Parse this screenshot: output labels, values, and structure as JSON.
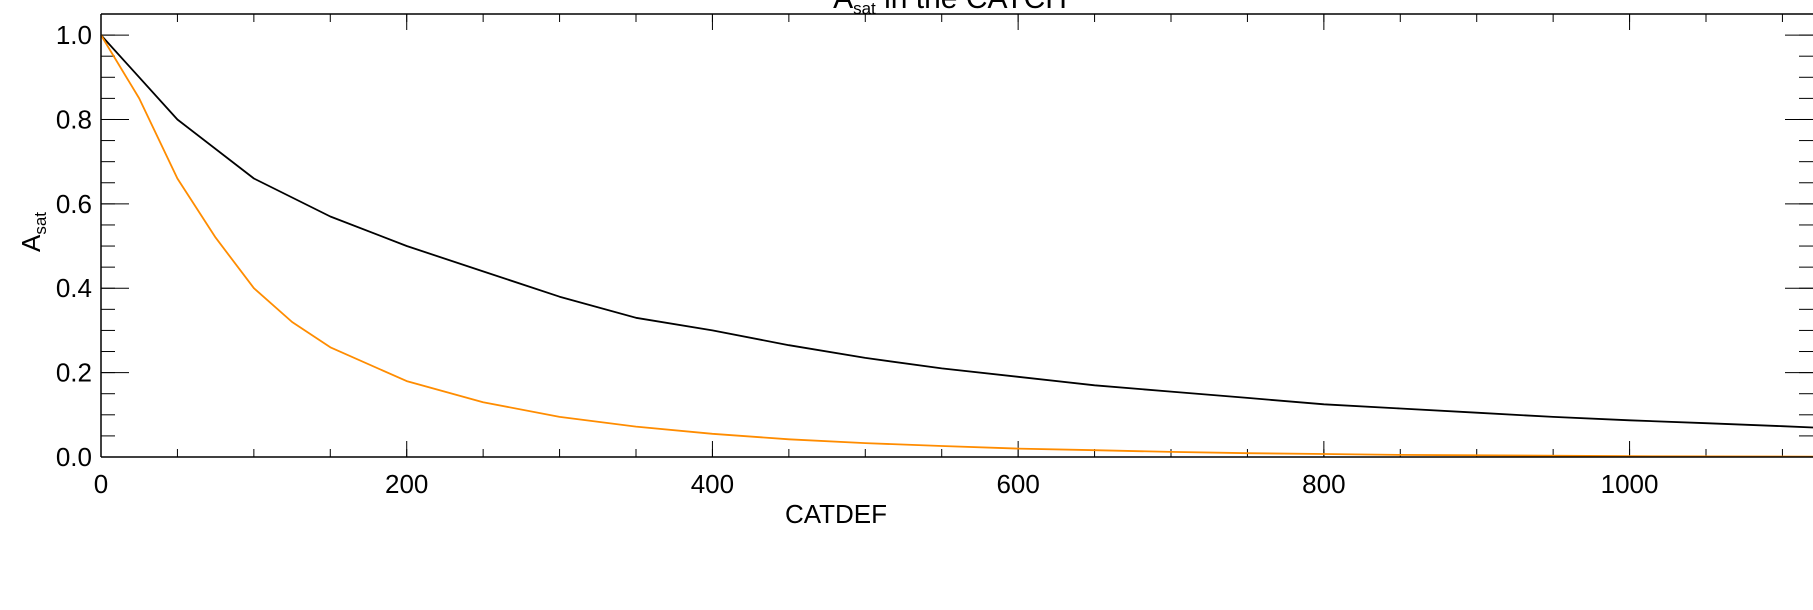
{
  "chart_data": {
    "type": "line",
    "title": {
      "main": "A",
      "sub": "sat",
      "rest": " in the CATCH"
    },
    "xlabel": "CATDEF",
    "ylabel": {
      "main": "A",
      "sub": "sat"
    },
    "xlim": [
      0,
      1120
    ],
    "ylim": [
      0,
      1.05
    ],
    "xticks": [
      0,
      200,
      400,
      600,
      800,
      1000
    ],
    "xtick_labels": [
      "0",
      "200",
      "400",
      "600",
      "800",
      "1000"
    ],
    "xminor_step": 50,
    "yticks": [
      0.0,
      0.2,
      0.4,
      0.6,
      0.8,
      1.0
    ],
    "ytick_labels": [
      "0.0",
      "0.2",
      "0.4",
      "0.6",
      "0.8",
      "1.0"
    ],
    "yminor_step": 0.05,
    "grid": false,
    "series": [
      {
        "color": "#000000",
        "x": [
          0,
          50,
          100,
          150,
          200,
          250,
          300,
          350,
          400,
          450,
          500,
          550,
          600,
          650,
          700,
          750,
          800,
          850,
          900,
          950,
          1000,
          1050,
          1100,
          1120
        ],
        "y": [
          1.0,
          0.8,
          0.66,
          0.57,
          0.5,
          0.44,
          0.38,
          0.33,
          0.3,
          0.265,
          0.235,
          0.21,
          0.19,
          0.17,
          0.155,
          0.14,
          0.125,
          0.115,
          0.105,
          0.095,
          0.087,
          0.08,
          0.073,
          0.07
        ]
      },
      {
        "color": "#ff8c00",
        "x": [
          0,
          25,
          50,
          75,
          100,
          125,
          150,
          200,
          250,
          300,
          350,
          400,
          450,
          500,
          550,
          600,
          650,
          700,
          750,
          800,
          850,
          900,
          1000,
          1120
        ],
        "y": [
          1.0,
          0.85,
          0.66,
          0.52,
          0.4,
          0.32,
          0.26,
          0.18,
          0.13,
          0.095,
          0.072,
          0.055,
          0.042,
          0.033,
          0.026,
          0.02,
          0.016,
          0.012,
          0.009,
          0.007,
          0.005,
          0.004,
          0.002,
          0.001
        ]
      }
    ]
  }
}
